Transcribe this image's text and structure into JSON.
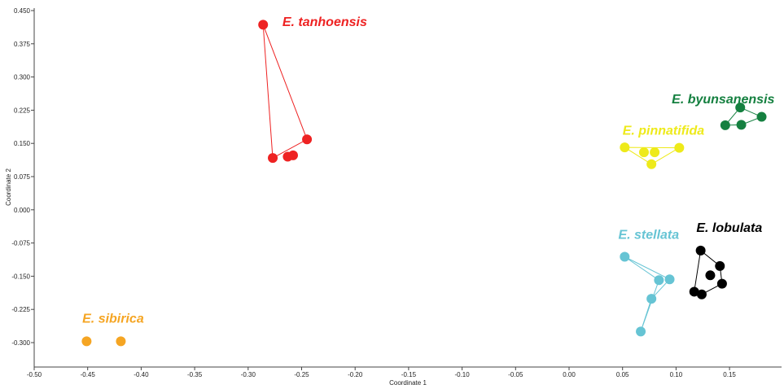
{
  "chart_data": {
    "type": "scatter",
    "xlabel": "Coordinate 1",
    "ylabel": "Coordinate 2",
    "xlim": [
      -0.5,
      0.2
    ],
    "ylim": [
      -0.34,
      0.45
    ],
    "xticks": [
      -0.5,
      -0.45,
      -0.4,
      -0.35,
      -0.3,
      -0.25,
      -0.2,
      -0.15,
      -0.1,
      -0.05,
      0.0,
      0.05,
      0.1,
      0.15
    ],
    "xtick_labels": [
      "-0.50",
      "-0.45",
      "-0.40",
      "-0.35",
      "-0.30",
      "-0.25",
      "-0.20",
      "-0.15",
      "-0.10",
      "-0.05",
      "0.00",
      "0.05",
      "0.10",
      "0.15"
    ],
    "yticks": [
      0.45,
      0.375,
      0.3,
      0.225,
      0.15,
      0.075,
      0.0,
      -0.075,
      -0.15,
      -0.225,
      -0.3
    ],
    "ytick_labels": [
      "0.450",
      "0.375",
      "0.300",
      "0.225",
      "0.150",
      "0.075",
      "0.000",
      "-0.075",
      "-0.150",
      "-0.225",
      "-0.300"
    ],
    "grid": false,
    "legend": "none",
    "series": [
      {
        "name": "E. tanhoensis",
        "color": "#ee2222",
        "label_anchor": [
          -0.268,
          0.415
        ],
        "hull": [
          0,
          4,
          1
        ],
        "points": [
          [
            -0.286,
            0.418
          ],
          [
            -0.277,
            0.117
          ],
          [
            -0.263,
            0.12
          ],
          [
            -0.258,
            0.123
          ],
          [
            -0.245,
            0.159
          ]
        ]
      },
      {
        "name": "E. byunsanensis",
        "color": "#158040",
        "label_anchor": [
          0.096,
          0.24
        ],
        "hull": [
          0,
          2,
          3,
          1
        ],
        "points": [
          [
            0.16,
            0.231
          ],
          [
            0.146,
            0.191
          ],
          [
            0.18,
            0.21
          ],
          [
            0.161,
            0.192
          ]
        ]
      },
      {
        "name": "E. pinnatifida",
        "color": "#eeea1a",
        "label_anchor": [
          0.05,
          0.17
        ],
        "hull": [
          0,
          4,
          3
        ],
        "points": [
          [
            0.052,
            0.141
          ],
          [
            0.07,
            0.13
          ],
          [
            0.08,
            0.13
          ],
          [
            0.077,
            0.103
          ],
          [
            0.103,
            0.14
          ]
        ]
      },
      {
        "name": "E. stellata",
        "color": "#66c4d4",
        "label_anchor": [
          0.046,
          -0.066
        ],
        "hull": [
          0,
          3,
          2,
          1,
          4
        ],
        "points": [
          [
            0.052,
            -0.106
          ],
          [
            0.067,
            -0.275
          ],
          [
            0.077,
            -0.201
          ],
          [
            0.094,
            -0.157
          ],
          [
            0.084,
            -0.159
          ]
        ]
      },
      {
        "name": "E. lobulata",
        "color": "#000000",
        "label_anchor": [
          0.119,
          -0.05
        ],
        "hull": [
          0,
          1,
          3,
          5,
          4
        ],
        "points": [
          [
            0.123,
            -0.092
          ],
          [
            0.141,
            -0.127
          ],
          [
            0.132,
            -0.148
          ],
          [
            0.143,
            -0.167
          ],
          [
            0.117,
            -0.185
          ],
          [
            0.124,
            -0.191
          ]
        ]
      },
      {
        "name": "E. sibirica",
        "color": "#f5a523",
        "label_anchor": [
          -0.455,
          -0.255
        ],
        "hull": [],
        "points": [
          [
            -0.451,
            -0.297
          ],
          [
            -0.419,
            -0.297
          ]
        ]
      }
    ]
  }
}
